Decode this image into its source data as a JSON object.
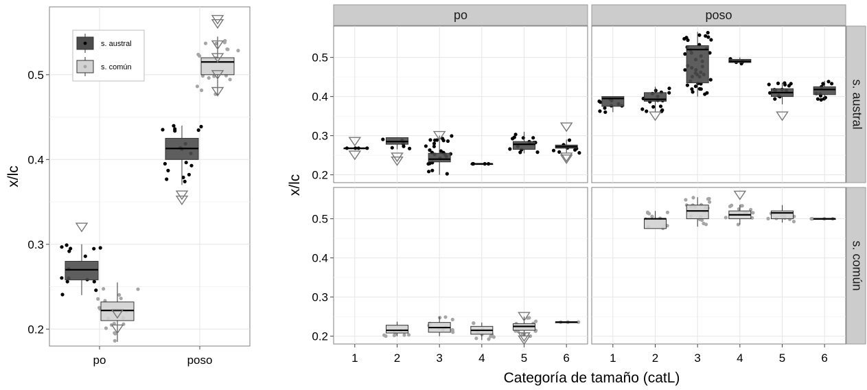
{
  "chart_data": [
    {
      "type": "boxplot",
      "xlabel": "",
      "ylabel": "x/lc",
      "categories": [
        "po",
        "poso"
      ],
      "yticks": [
        0.2,
        0.3,
        0.4,
        0.5
      ],
      "ylim": [
        0.18,
        0.58
      ],
      "legend": {
        "position": "top-left",
        "entries": [
          {
            "label": "s. austral",
            "color": "#4d4d4d"
          },
          {
            "label": "s. común",
            "color": "#d2d2d2"
          }
        ]
      },
      "series": [
        {
          "name": "s. austral",
          "color": "#4d4d4d",
          "boxes": [
            {
              "category": "po",
              "min": 0.24,
              "q1": 0.258,
              "median": 0.27,
              "q3": 0.28,
              "max": 0.3,
              "outliers": [
                0.32
              ]
            },
            {
              "category": "poso",
              "min": 0.37,
              "q1": 0.4,
              "median": 0.413,
              "q3": 0.425,
              "max": 0.44,
              "outliers": [
                0.352,
                0.358
              ]
            }
          ]
        },
        {
          "name": "s. común",
          "color": "#d2d2d2",
          "boxes": [
            {
              "category": "po",
              "min": 0.185,
              "q1": 0.21,
              "median": 0.222,
              "q3": 0.232,
              "max": 0.255,
              "outliers": [
                0.2,
                0.218
              ]
            },
            {
              "category": "poso",
              "min": 0.475,
              "q1": 0.5,
              "median": 0.515,
              "q3": 0.52,
              "max": 0.545,
              "outliers": [
                0.48,
                0.5,
                0.52,
                0.535,
                0.56,
                0.565
              ]
            }
          ]
        }
      ]
    },
    {
      "type": "boxplot",
      "xlabel": "Categoría de tamaño (catL)",
      "ylabel": "x/lc",
      "facet_cols": [
        "po",
        "poso"
      ],
      "facet_rows": [
        "s. austral",
        "s. común"
      ],
      "categories": [
        "1",
        "2",
        "3",
        "4",
        "5",
        "6"
      ],
      "yticks": [
        0.2,
        0.3,
        0.4,
        0.5
      ],
      "ylim": [
        0.18,
        0.58
      ],
      "panels": [
        {
          "col": "po",
          "row": "s. austral",
          "color": "#4d4d4d",
          "boxes": [
            {
              "category": "1",
              "min": 0.268,
              "q1": 0.268,
              "median": 0.268,
              "q3": 0.268,
              "max": 0.268,
              "outliers": [
                0.25,
                0.285
              ]
            },
            {
              "category": "2",
              "min": 0.265,
              "q1": 0.278,
              "median": 0.285,
              "q3": 0.295,
              "max": 0.295,
              "outliers": [
                0.235,
                0.245
              ]
            },
            {
              "category": "3",
              "min": 0.2,
              "q1": 0.233,
              "median": 0.24,
              "q3": 0.255,
              "max": 0.3,
              "outliers": [
                0.3
              ]
            },
            {
              "category": "4",
              "min": 0.228,
              "q1": 0.228,
              "median": 0.228,
              "q3": 0.228,
              "max": 0.228,
              "outliers": []
            },
            {
              "category": "5",
              "min": 0.255,
              "q1": 0.265,
              "median": 0.278,
              "q3": 0.285,
              "max": 0.31,
              "outliers": []
            },
            {
              "category": "6",
              "min": 0.255,
              "q1": 0.268,
              "median": 0.272,
              "q3": 0.276,
              "max": 0.29,
              "outliers": [
                0.24,
                0.245,
                0.322
              ]
            }
          ]
        },
        {
          "col": "poso",
          "row": "s. austral",
          "color": "#4d4d4d",
          "boxes": [
            {
              "category": "1",
              "min": 0.36,
              "q1": 0.375,
              "median": 0.395,
              "q3": 0.4,
              "max": 0.4,
              "outliers": []
            },
            {
              "category": "2",
              "min": 0.36,
              "q1": 0.388,
              "median": 0.393,
              "q3": 0.41,
              "max": 0.425,
              "outliers": [
                0.35
              ]
            },
            {
              "category": "3",
              "min": 0.4,
              "q1": 0.435,
              "median": 0.52,
              "q3": 0.53,
              "max": 0.565,
              "outliers": []
            },
            {
              "category": "4",
              "min": 0.484,
              "q1": 0.487,
              "median": 0.49,
              "q3": 0.495,
              "max": 0.5,
              "outliers": []
            },
            {
              "category": "5",
              "min": 0.38,
              "q1": 0.4,
              "median": 0.41,
              "q3": 0.42,
              "max": 0.435,
              "outliers": [
                0.35
              ]
            },
            {
              "category": "6",
              "min": 0.39,
              "q1": 0.405,
              "median": 0.418,
              "q3": 0.425,
              "max": 0.44,
              "outliers": []
            }
          ]
        },
        {
          "col": "po",
          "row": "s. común",
          "color": "#d2d2d2",
          "boxes": [
            {
              "category": "2",
              "min": 0.2,
              "q1": 0.208,
              "median": 0.215,
              "q3": 0.228,
              "max": 0.237,
              "outliers": []
            },
            {
              "category": "3",
              "min": 0.2,
              "q1": 0.21,
              "median": 0.222,
              "q3": 0.235,
              "max": 0.25,
              "outliers": []
            },
            {
              "category": "4",
              "min": 0.19,
              "q1": 0.205,
              "median": 0.215,
              "q3": 0.225,
              "max": 0.235,
              "outliers": []
            },
            {
              "category": "5",
              "min": 0.2,
              "q1": 0.215,
              "median": 0.225,
              "q3": 0.232,
              "max": 0.25,
              "outliers": [
                0.19,
                0.198,
                0.25
              ]
            },
            {
              "category": "6",
              "min": 0.236,
              "q1": 0.236,
              "median": 0.236,
              "q3": 0.236,
              "max": 0.236,
              "outliers": []
            }
          ]
        },
        {
          "col": "poso",
          "row": "s. común",
          "color": "#d2d2d2",
          "boxes": [
            {
              "category": "2",
              "min": 0.475,
              "q1": 0.475,
              "median": 0.5,
              "q3": 0.5,
              "max": 0.52,
              "outliers": []
            },
            {
              "category": "3",
              "min": 0.48,
              "q1": 0.5,
              "median": 0.52,
              "q3": 0.535,
              "max": 0.555,
              "outliers": []
            },
            {
              "category": "4",
              "min": 0.485,
              "q1": 0.5,
              "median": 0.51,
              "q3": 0.52,
              "max": 0.535,
              "outliers": [
                0.56
              ]
            },
            {
              "category": "5",
              "min": 0.49,
              "q1": 0.5,
              "median": 0.515,
              "q3": 0.52,
              "max": 0.535,
              "outliers": []
            },
            {
              "category": "6",
              "min": 0.5,
              "q1": 0.5,
              "median": 0.5,
              "q3": 0.5,
              "max": 0.5,
              "outliers": []
            }
          ]
        }
      ]
    }
  ]
}
